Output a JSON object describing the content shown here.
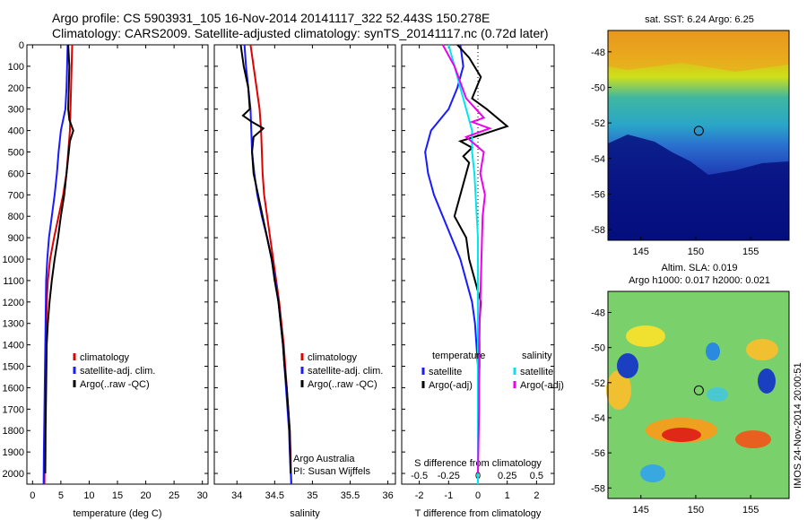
{
  "header": {
    "line1": "Argo profile: CS 5903931_105 16-Nov-2014 20141117_322 52.443S 150.278E",
    "line2": "Climatology: CARS2009. Satellite-adjusted climatology: synTS_20141117.nc (0.72d later)"
  },
  "colors": {
    "climatology": "#e00000",
    "satellite": "#1a1aff",
    "argo": "#000000",
    "satellite_s": "#00e5ee",
    "argo_s": "#ee00ee"
  },
  "chart_data": [
    {
      "type": "line",
      "xlabel": "temperature (deg C)",
      "xlim": [
        -1,
        31
      ],
      "xticks": [
        0,
        5,
        10,
        15,
        20,
        25,
        30
      ],
      "ylim": [
        0,
        2050
      ],
      "yticks": [
        0,
        100,
        200,
        300,
        400,
        500,
        600,
        700,
        800,
        900,
        1000,
        1100,
        1200,
        1300,
        1400,
        1500,
        1600,
        1700,
        1800,
        1900,
        2000
      ],
      "legend": [
        "climatology",
        "satellite-adj. clim.",
        "Argo(..raw -QC)"
      ],
      "series": [
        {
          "name": "climatology",
          "x": [
            7.0,
            6.9,
            6.8,
            6.7,
            6.6,
            6.3,
            6.0,
            5.4,
            4.6,
            3.8,
            3.1,
            2.7,
            2.5,
            2.45,
            2.4,
            2.35,
            2.3,
            2.25,
            2.2,
            2.15,
            2.1
          ],
          "y": [
            0,
            100,
            200,
            300,
            400,
            500,
            600,
            700,
            800,
            900,
            1000,
            1100,
            1200,
            1300,
            1400,
            1500,
            1600,
            1700,
            1800,
            1900,
            2050
          ]
        },
        {
          "name": "satellite-adj. clim.",
          "x": [
            6.2,
            6.1,
            6.0,
            5.8,
            5.0,
            4.6,
            4.3,
            3.9,
            3.4,
            2.9,
            2.6,
            2.4,
            2.35,
            2.3,
            2.25,
            2.2,
            2.15,
            2.1,
            2.05,
            2.0,
            1.95
          ],
          "y": [
            0,
            100,
            200,
            300,
            400,
            500,
            600,
            700,
            800,
            900,
            1000,
            1100,
            1200,
            1300,
            1400,
            1500,
            1600,
            1700,
            1800,
            1900,
            2050
          ]
        },
        {
          "name": "Argo(..raw -QC)",
          "x": [
            6.3,
            6.5,
            6.4,
            6.3,
            6.5,
            7.2,
            6.6,
            6.4,
            6.0,
            5.6,
            5.0,
            4.5,
            3.9,
            3.4,
            3.0,
            2.7,
            2.5,
            2.45,
            2.4,
            2.35,
            2.3,
            2.28,
            2.25
          ],
          "y": [
            0,
            100,
            200,
            300,
            350,
            400,
            450,
            500,
            600,
            700,
            800,
            900,
            1000,
            1100,
            1200,
            1300,
            1400,
            1500,
            1600,
            1700,
            1800,
            1900,
            2000
          ]
        }
      ]
    },
    {
      "type": "line",
      "xlabel": "salinity",
      "xlim": [
        33.7,
        36.1
      ],
      "xticks": [
        34,
        34.5,
        35,
        35.5,
        36
      ],
      "ylim": [
        0,
        2050
      ],
      "legend": [
        "climatology",
        "satellite-adj. clim.",
        "Argo(..raw -QC)"
      ],
      "annotation": [
        "Argo Australia",
        "PI: Susan Wijffels"
      ],
      "series": [
        {
          "name": "climatology",
          "x": [
            34.18,
            34.22,
            34.26,
            34.3,
            34.32,
            34.33,
            34.34,
            34.36,
            34.4,
            34.44,
            34.48,
            34.52,
            34.56,
            34.59,
            34.62,
            34.64,
            34.66,
            34.68,
            34.7,
            34.71,
            34.72
          ],
          "y": [
            0,
            100,
            200,
            300,
            400,
            500,
            600,
            700,
            800,
            900,
            1000,
            1100,
            1200,
            1300,
            1400,
            1500,
            1600,
            1700,
            1800,
            1900,
            2050
          ]
        },
        {
          "name": "satellite-adj. clim.",
          "x": [
            34.1,
            34.12,
            34.15,
            34.18,
            34.19,
            34.2,
            34.23,
            34.27,
            34.33,
            34.4,
            34.46,
            34.51,
            34.55,
            34.58,
            34.61,
            34.63,
            34.65,
            34.67,
            34.69,
            34.7,
            34.72
          ],
          "y": [
            0,
            100,
            200,
            300,
            400,
            500,
            600,
            700,
            800,
            900,
            1000,
            1100,
            1200,
            1300,
            1400,
            1500,
            1600,
            1700,
            1800,
            1900,
            2050
          ]
        },
        {
          "name": "Argo(..raw -QC)",
          "x": [
            34.05,
            34.09,
            34.15,
            34.17,
            34.08,
            34.2,
            34.35,
            34.22,
            34.2,
            34.22,
            34.28,
            34.34,
            34.4,
            34.46,
            34.5,
            34.55,
            34.58,
            34.61,
            34.63,
            34.66,
            34.68,
            34.7,
            34.71
          ],
          "y": [
            0,
            100,
            200,
            300,
            330,
            360,
            390,
            430,
            500,
            600,
            700,
            800,
            900,
            1000,
            1100,
            1200,
            1300,
            1400,
            1500,
            1600,
            1700,
            1800,
            2000
          ]
        }
      ]
    },
    {
      "type": "line",
      "xlabel": "T difference from climatology",
      "xlabel_top": "S difference from climatology",
      "xlim": [
        -2.6,
        2.6
      ],
      "xticks": [
        -2,
        -1,
        0,
        1,
        2
      ],
      "xticks_s": [
        "-0.5",
        "-0.25",
        "0",
        "0.25",
        "0.5"
      ],
      "ylim": [
        0,
        2050
      ],
      "legend": {
        "temperature": "temperature",
        "salinity": "salinity",
        "items": [
          "satellite",
          "Argo(-adj)",
          "satellite",
          "Argo(-adj)"
        ]
      },
      "series": [
        {
          "name": "T satellite",
          "x": [
            -0.6,
            -0.5,
            -0.7,
            -1.0,
            -1.6,
            -1.8,
            -1.7,
            -1.5,
            -1.2,
            -0.9,
            -0.6,
            -0.4,
            -0.2,
            -0.1,
            -0.05,
            0,
            0,
            0,
            0,
            0,
            0
          ],
          "y": [
            0,
            100,
            200,
            300,
            400,
            500,
            600,
            700,
            800,
            900,
            1000,
            1100,
            1200,
            1300,
            1400,
            1500,
            1600,
            1700,
            1800,
            1900,
            2050
          ]
        },
        {
          "name": "T Argo(-adj)",
          "x": [
            -0.7,
            -0.3,
            0.1,
            -0.2,
            0.3,
            1.0,
            0.1,
            -0.6,
            -0.2,
            -0.5,
            -0.3,
            -0.6,
            -0.8,
            -0.4,
            -0.3,
            -0.1,
            0.1,
            0.05,
            0.05,
            0,
            0,
            0
          ],
          "y": [
            0,
            60,
            150,
            250,
            300,
            380,
            420,
            450,
            480,
            520,
            550,
            700,
            800,
            900,
            1000,
            1100,
            1200,
            1300,
            1500,
            1700,
            1900,
            2000
          ]
        },
        {
          "name": "S satellite",
          "x": [
            -0.25,
            -0.2,
            -0.15,
            -0.1,
            -0.05,
            -0.05,
            -0.03,
            -0.02,
            -0.01,
            0,
            0,
            0,
            0,
            0,
            0,
            0
          ],
          "y": [
            0,
            100,
            200,
            300,
            400,
            500,
            600,
            700,
            800,
            900,
            1000,
            1200,
            1400,
            1600,
            1800,
            2050
          ]
        },
        {
          "name": "S Argo(-adj)",
          "x": [
            -0.3,
            -0.2,
            -0.1,
            0.05,
            -0.05,
            0.1,
            -0.1,
            0.05,
            0.02,
            0.06,
            0.04,
            0.03,
            0.02,
            0.01,
            0.01,
            0
          ],
          "y": [
            0,
            100,
            250,
            340,
            360,
            390,
            430,
            500,
            600,
            700,
            800,
            1000,
            1200,
            1400,
            1700,
            2000
          ]
        }
      ]
    },
    {
      "type": "heatmap",
      "title": "sat. SST: 6.24 Argo: 6.25",
      "xticks": [
        145,
        150,
        155
      ],
      "yticks": [
        -48,
        -50,
        -52,
        -54,
        -56,
        -58
      ],
      "xlim": [
        142,
        158.5
      ],
      "ylim": [
        -58.6,
        -46.8
      ],
      "marker": [
        150.28,
        -52.44
      ]
    },
    {
      "type": "heatmap",
      "title": "Altim. SLA: 0.019",
      "subtitle": "Argo h1000: 0.017 h2000: 0.021",
      "xticks": [
        145,
        150,
        155
      ],
      "yticks": [
        -48,
        -50,
        -52,
        -54,
        -56,
        -58
      ],
      "xlim": [
        142,
        158.5
      ],
      "ylim": [
        -58.6,
        -46.8
      ],
      "marker": [
        150.28,
        -52.44
      ]
    }
  ],
  "watermark": "IMOS 24-Nov-2014 20:00:51"
}
